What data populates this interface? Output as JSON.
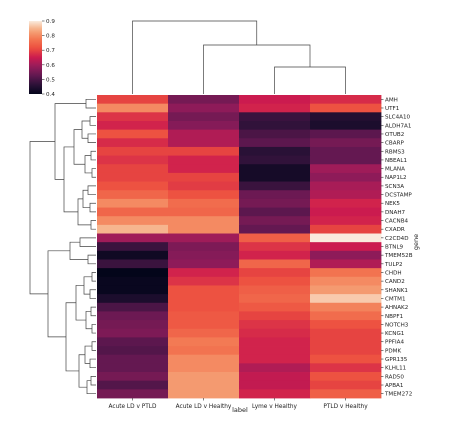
{
  "chart_data": {
    "type": "heatmap",
    "title": "",
    "xlabel": "label",
    "ylabel": "gene",
    "columns": [
      "Acute LD v PTLD",
      "Acute LD v Healthy",
      "Lyme v Healthy",
      "PTLD v Healthy"
    ],
    "rows": [
      "AMH",
      "UTF1",
      "SLC4A10",
      "ALDH7A1",
      "OTUB2",
      "CBARP",
      "RBMS3",
      "NBEAL1",
      "MLANA",
      "NAP1L2",
      "SCN3A",
      "DCSTAMP",
      "NEK5",
      "DNAH7",
      "CACNB4",
      "CXADR",
      "C2CD4D",
      "BTNL9",
      "TMEM52B",
      "TULP2",
      "CHDH",
      "CAND2",
      "SHANK1",
      "CMTM1",
      "AHNAK2",
      "NBPF1",
      "NOTCH3",
      "KCNG1",
      "PPFIA4",
      "PDMK",
      "GPR135",
      "KLHL11",
      "RAD50",
      "APBA1",
      "TMEM272"
    ],
    "values": [
      [
        0.7,
        0.55,
        0.65,
        0.67
      ],
      [
        0.8,
        0.58,
        0.66,
        0.72
      ],
      [
        0.68,
        0.55,
        0.48,
        0.45
      ],
      [
        0.66,
        0.57,
        0.47,
        0.44
      ],
      [
        0.72,
        0.62,
        0.5,
        0.52
      ],
      [
        0.67,
        0.62,
        0.52,
        0.55
      ],
      [
        0.7,
        0.7,
        0.46,
        0.53
      ],
      [
        0.68,
        0.66,
        0.47,
        0.53
      ],
      [
        0.7,
        0.66,
        0.43,
        0.6
      ],
      [
        0.7,
        0.7,
        0.43,
        0.58
      ],
      [
        0.72,
        0.69,
        0.48,
        0.61
      ],
      [
        0.75,
        0.72,
        0.54,
        0.62
      ],
      [
        0.8,
        0.76,
        0.55,
        0.66
      ],
      [
        0.75,
        0.75,
        0.52,
        0.65
      ],
      [
        0.8,
        0.8,
        0.55,
        0.66
      ],
      [
        0.85,
        0.8,
        0.53,
        0.7
      ],
      [
        0.6,
        0.6,
        0.74,
        0.9
      ],
      [
        0.48,
        0.56,
        0.68,
        0.65
      ],
      [
        0.42,
        0.57,
        0.66,
        0.58
      ],
      [
        0.48,
        0.58,
        0.75,
        0.62
      ],
      [
        0.4,
        0.66,
        0.7,
        0.77
      ],
      [
        0.41,
        0.68,
        0.72,
        0.8
      ],
      [
        0.41,
        0.72,
        0.74,
        0.82
      ],
      [
        0.44,
        0.72,
        0.75,
        0.87
      ],
      [
        0.5,
        0.72,
        0.73,
        0.79
      ],
      [
        0.54,
        0.73,
        0.7,
        0.76
      ],
      [
        0.55,
        0.73,
        0.68,
        0.72
      ],
      [
        0.56,
        0.75,
        0.67,
        0.7
      ],
      [
        0.52,
        0.78,
        0.66,
        0.7
      ],
      [
        0.51,
        0.77,
        0.66,
        0.7
      ],
      [
        0.53,
        0.8,
        0.66,
        0.72
      ],
      [
        0.53,
        0.8,
        0.62,
        0.68
      ],
      [
        0.55,
        0.82,
        0.64,
        0.72
      ],
      [
        0.51,
        0.82,
        0.64,
        0.7
      ],
      [
        0.55,
        0.82,
        0.66,
        0.74
      ]
    ],
    "colorbar": {
      "min": 0.4,
      "max": 0.9,
      "ticks": [
        0.4,
        0.5,
        0.6,
        0.7,
        0.8,
        0.9
      ],
      "colormap": "rocket"
    },
    "column_dendrogram": true,
    "row_dendrogram": true,
    "grid": false
  }
}
